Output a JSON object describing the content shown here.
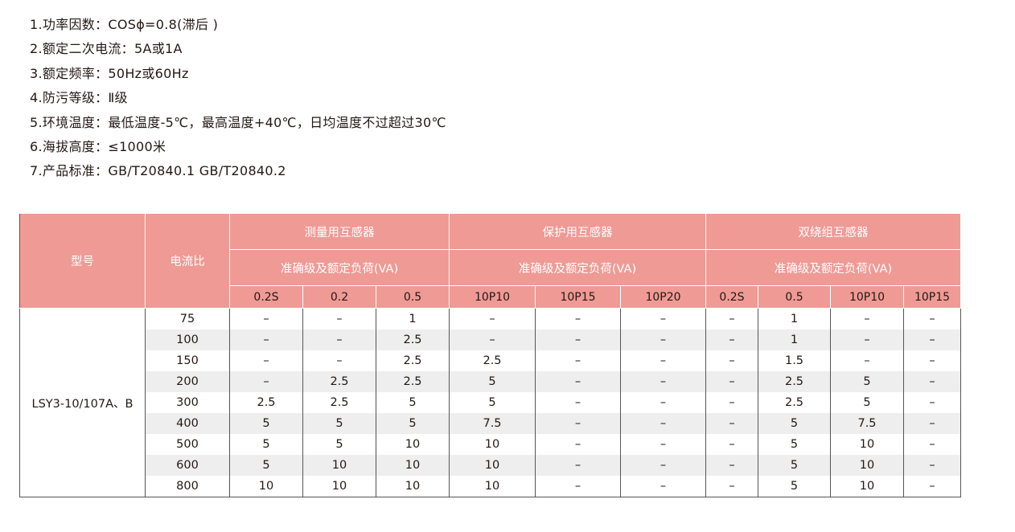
{
  "specs": [
    "1.功率因数：COSϕ=0.8(滞后 )",
    "2.额定二次电流：5A或1A",
    "3.额定频率：50Hz或60Hz",
    "4.防污等级：Ⅱ级",
    "5.环境温度：最低温度-5℃，最高温度+40℃，日均温度不过超过30℃",
    "6.海拔高度：≤1000米",
    "7.产品标准：GB/T20840.1   GB/T20840.2"
  ],
  "table": {
    "model_header": "型号",
    "ratio_header": "电流比",
    "groups": [
      {
        "name": "测量用互感器",
        "sub": "准确级及额定负荷(VA)"
      },
      {
        "name": "保护用互感器",
        "sub": "准确级及额定负荷(VA)"
      },
      {
        "name": "双绕组互感器",
        "sub": "准确级及额定负荷(VA)"
      }
    ],
    "columns": [
      "0.2S",
      "0.2",
      "0.5",
      "10P10",
      "10P15",
      "10P20",
      "0.2S",
      "0.5",
      "10P10",
      "10P15"
    ],
    "model": "LSY3-10/107A、B",
    "rows": [
      {
        "ratio": "75",
        "values": [
          "–",
          "–",
          "1",
          "–",
          "–",
          "–",
          "–",
          "1",
          "–",
          "–"
        ]
      },
      {
        "ratio": "100",
        "values": [
          "–",
          "–",
          "2.5",
          "–",
          "–",
          "–",
          "–",
          "1",
          "–",
          "–"
        ]
      },
      {
        "ratio": "150",
        "values": [
          "–",
          "–",
          "2.5",
          "2.5",
          "–",
          "–",
          "–",
          "1.5",
          "–",
          "–"
        ]
      },
      {
        "ratio": "200",
        "values": [
          "–",
          "2.5",
          "2.5",
          "5",
          "–",
          "–",
          "–",
          "2.5",
          "5",
          "–"
        ]
      },
      {
        "ratio": "300",
        "values": [
          "2.5",
          "2.5",
          "5",
          "5",
          "–",
          "–",
          "–",
          "2.5",
          "5",
          "–"
        ]
      },
      {
        "ratio": "400",
        "values": [
          "5",
          "5",
          "5",
          "7.5",
          "–",
          "–",
          "–",
          "5",
          "7.5",
          "–"
        ]
      },
      {
        "ratio": "500",
        "values": [
          "5",
          "5",
          "10",
          "10",
          "–",
          "–",
          "–",
          "5",
          "10",
          "–"
        ]
      },
      {
        "ratio": "600",
        "values": [
          "5",
          "10",
          "10",
          "10",
          "–",
          "–",
          "–",
          "5",
          "10",
          "–"
        ]
      },
      {
        "ratio": "800",
        "values": [
          "10",
          "10",
          "10",
          "10",
          "–",
          "–",
          "–",
          "5",
          "10",
          "–"
        ]
      }
    ]
  }
}
